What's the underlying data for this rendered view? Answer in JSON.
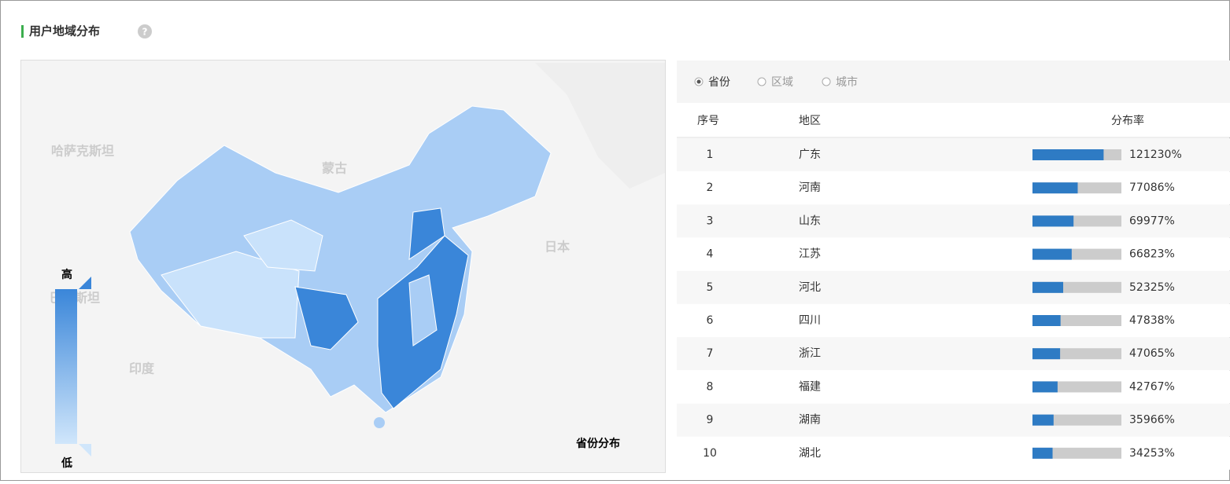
{
  "header": {
    "title": "用户地域分布"
  },
  "map": {
    "labels": [
      "哈萨克斯坦",
      "蒙古",
      "日本",
      "巴基斯坦",
      "印度"
    ],
    "legend": {
      "high": "高",
      "low": "低"
    },
    "caption": "省份分布"
  },
  "tabs": [
    "省份",
    "区域",
    "城市"
  ],
  "table": {
    "columns": [
      "序号",
      "地区",
      "分布率"
    ],
    "rows": [
      {
        "rank": 1,
        "region": "广东",
        "rate": 121230,
        "rate_label": "121230%"
      },
      {
        "rank": 2,
        "region": "河南",
        "rate": 77086,
        "rate_label": "77086%"
      },
      {
        "rank": 3,
        "region": "山东",
        "rate": 69977,
        "rate_label": "69977%"
      },
      {
        "rank": 4,
        "region": "江苏",
        "rate": 66823,
        "rate_label": "66823%"
      },
      {
        "rank": 5,
        "region": "河北",
        "rate": 52325,
        "rate_label": "52325%"
      },
      {
        "rank": 6,
        "region": "四川",
        "rate": 47838,
        "rate_label": "47838%"
      },
      {
        "rank": 7,
        "region": "浙江",
        "rate": 47065,
        "rate_label": "47065%"
      },
      {
        "rank": 8,
        "region": "福建",
        "rate": 42767,
        "rate_label": "42767%"
      },
      {
        "rank": 9,
        "region": "湖南",
        "rate": 35966,
        "rate_label": "35966%"
      },
      {
        "rank": 10,
        "region": "湖北",
        "rate": 34253,
        "rate_label": "34253%"
      }
    ]
  }
}
